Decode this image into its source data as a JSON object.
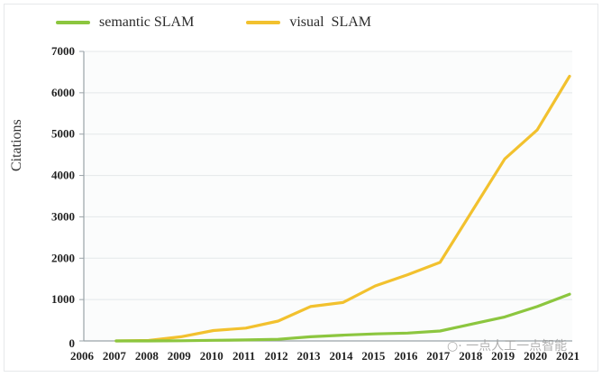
{
  "legend": {
    "items": [
      {
        "label": "semantic SLAM",
        "color": "#8cc63f"
      },
      {
        "label": "visual  SLAM",
        "color": "#f2c12e"
      }
    ]
  },
  "axes": {
    "ylabel": "Citations",
    "yticks": [
      "0",
      "1000",
      "2000",
      "3000",
      "4000",
      "5000",
      "6000",
      "7000"
    ],
    "xticks": [
      "2006",
      "2007",
      "2008",
      "2009",
      "2010",
      "2011",
      "2012",
      "2013",
      "2014",
      "2015",
      "2016",
      "2017",
      "2018",
      "2019",
      "2020",
      "2021"
    ]
  },
  "watermark": "一点人工一点智能",
  "chart_data": {
    "type": "line",
    "title": "",
    "xlabel": "",
    "ylabel": "Citations",
    "x": [
      2007,
      2008,
      2009,
      2010,
      2011,
      2012,
      2013,
      2014,
      2015,
      2016,
      2017,
      2018,
      2019,
      2020,
      2021
    ],
    "series": [
      {
        "name": "semantic SLAM",
        "color": "#8cc63f",
        "values": [
          0,
          0,
          5,
          15,
          25,
          40,
          100,
          140,
          170,
          190,
          240,
          410,
          580,
          830,
          1130
        ]
      },
      {
        "name": "visual  SLAM",
        "color": "#f2c12e",
        "values": [
          0,
          10,
          100,
          250,
          310,
          480,
          830,
          930,
          1330,
          1600,
          1900,
          3150,
          4400,
          5100,
          6400
        ]
      }
    ],
    "xlim": [
      2006,
      2021
    ],
    "ylim": [
      0,
      7000
    ],
    "yticks": [
      0,
      1000,
      2000,
      3000,
      4000,
      5000,
      6000,
      7000
    ],
    "grid": "horizontal",
    "legend_position": "top"
  }
}
